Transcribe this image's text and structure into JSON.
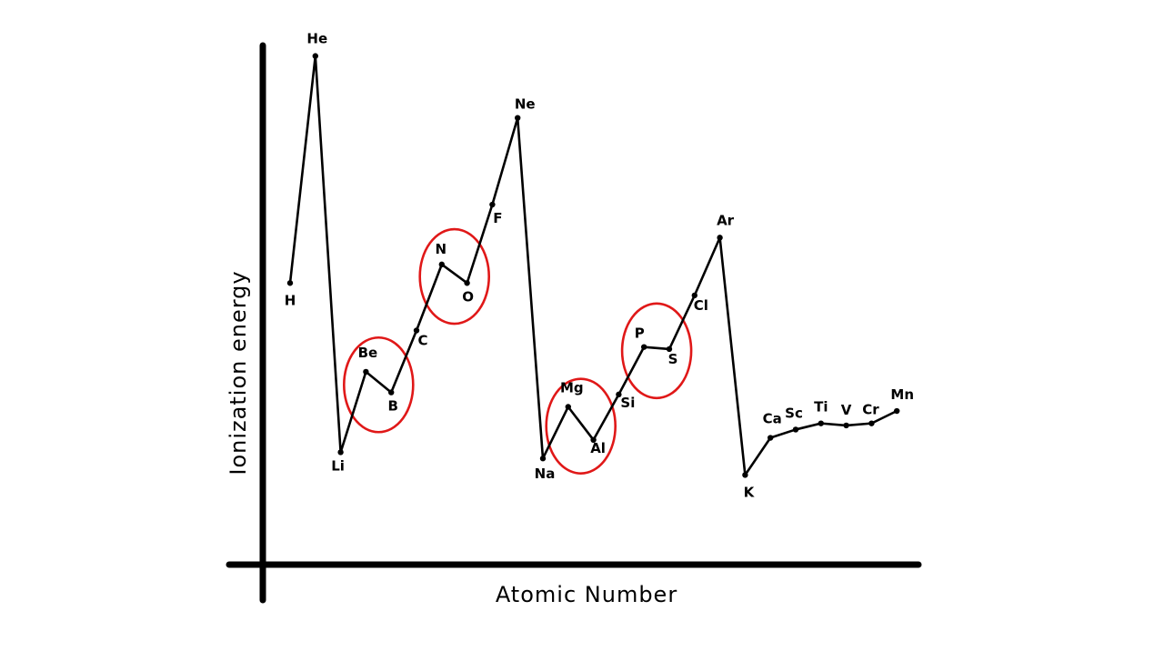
{
  "chart_data": {
    "type": "line",
    "xlabel": "Atomic Number",
    "ylabel": "Ionization energy",
    "x": [
      1,
      2,
      3,
      4,
      5,
      6,
      7,
      8,
      9,
      10,
      11,
      12,
      13,
      14,
      15,
      16,
      17,
      18,
      19,
      20,
      21,
      22,
      23,
      24,
      25
    ],
    "series": [
      {
        "labels": [
          "H",
          "He",
          "Li",
          "Be",
          "B",
          "C",
          "N",
          "O",
          "F",
          "Ne",
          "Na",
          "Mg",
          "Al",
          "Si",
          "P",
          "S",
          "Cl",
          "Ar",
          "K",
          "Ca",
          "Sc",
          "Ti",
          "V",
          "Cr",
          "Mn"
        ],
        "printed_labels": [
          "H",
          "He",
          "Li",
          "Be",
          "B",
          "C",
          "N",
          "O",
          "F",
          "Ne",
          "Na",
          "Mg",
          "Al",
          "Si",
          "P",
          "S",
          "Cl",
          "Ar",
          "K",
          "Ca",
          "Sc",
          "Ti",
          "V",
          "Cr",
          "Mn"
        ],
        "values": [
          13.6,
          24.6,
          5.4,
          9.3,
          8.3,
          11.3,
          14.5,
          13.6,
          17.4,
          21.6,
          5.1,
          7.6,
          6.0,
          8.2,
          10.5,
          10.4,
          13.0,
          15.8,
          4.3,
          6.1,
          6.5,
          6.8,
          6.7,
          6.8,
          7.4
        ]
      }
    ],
    "highlighted_groups": [
      [
        "Be",
        "B"
      ],
      [
        "N",
        "O"
      ],
      [
        "Mg",
        "Al"
      ],
      [
        "P",
        "S"
      ]
    ],
    "highlight_color": "#e01818",
    "line_color": "#000000",
    "grid": false
  }
}
